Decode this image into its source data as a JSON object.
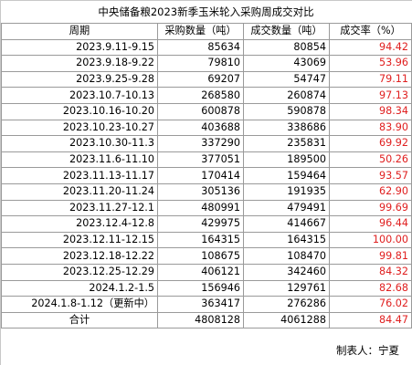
{
  "title": "中央储备粮2023新季玉米轮入采购周成交对比",
  "headers": {
    "period": "周期",
    "purchase": "采购数量（吨）",
    "deal": "成交数量（吨）",
    "rate": "成交率（%）"
  },
  "rows": [
    {
      "period": "2023.9.11-9.15",
      "purchase": "85634",
      "deal": "80854",
      "rate": "94.42"
    },
    {
      "period": "2023.9.18-9.22",
      "purchase": "79810",
      "deal": "43069",
      "rate": "53.96"
    },
    {
      "period": "2023.9.25-9.28",
      "purchase": "69207",
      "deal": "54747",
      "rate": "79.11"
    },
    {
      "period": "2023.10.7-10.13",
      "purchase": "268580",
      "deal": "260874",
      "rate": "97.13"
    },
    {
      "period": "2023.10.16-10.20",
      "purchase": "600878",
      "deal": "590878",
      "rate": "98.34"
    },
    {
      "period": "2023.10.23-10.27",
      "purchase": "403688",
      "deal": "338686",
      "rate": "83.90"
    },
    {
      "period": "2023.10.30-11.3",
      "purchase": "337290",
      "deal": "235831",
      "rate": "69.92"
    },
    {
      "period": "2023.11.6-11.10",
      "purchase": "377051",
      "deal": "189500",
      "rate": "50.26"
    },
    {
      "period": "2023.11.13-11.17",
      "purchase": "170414",
      "deal": "159464",
      "rate": "93.57"
    },
    {
      "period": "2023.11.20-11.24",
      "purchase": "305136",
      "deal": "191935",
      "rate": "62.90"
    },
    {
      "period": "2023.11.27-12.1",
      "purchase": "480991",
      "deal": "479491",
      "rate": "99.69"
    },
    {
      "period": "2023.12.4-12.8",
      "purchase": "429975",
      "deal": "414667",
      "rate": "96.44"
    },
    {
      "period": "2023.12.11-12.15",
      "purchase": "164315",
      "deal": "164315",
      "rate": "100.00"
    },
    {
      "period": "2023.12.18-12.22",
      "purchase": "108675",
      "deal": "108470",
      "rate": "99.81"
    },
    {
      "period": "2023.12.25-12.29",
      "purchase": "406121",
      "deal": "342460",
      "rate": "84.32"
    },
    {
      "period": "2024.1.2-1.5",
      "purchase": "156946",
      "deal": "129761",
      "rate": "82.68"
    },
    {
      "period": "2024.1.8-1.12（更新中）",
      "purchase": "363417",
      "deal": "276286",
      "rate": "76.02"
    }
  ],
  "total": {
    "label": "合计",
    "purchase": "4808128",
    "deal": "4061288",
    "rate": "84.47"
  },
  "producer": "制表人：宁夏",
  "colors": {
    "rate": "#e02020",
    "border": "#9a9a9a"
  }
}
